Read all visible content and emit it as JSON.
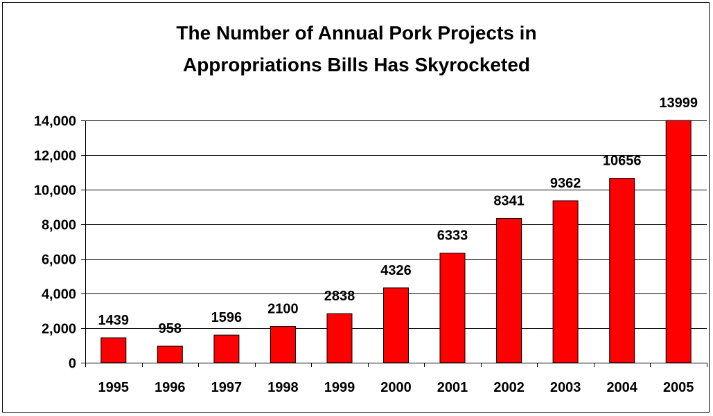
{
  "chart_data": {
    "type": "bar",
    "title": "The Number of Annual Pork Projects in Appropriations Bills Has Skyrocketed",
    "title_lines": [
      "The Number of Annual Pork Projects in",
      "Appropriations Bills Has Skyrocketed"
    ],
    "xlabel": "",
    "ylabel": "",
    "categories": [
      "1995",
      "1996",
      "1997",
      "1998",
      "1999",
      "2000",
      "2001",
      "2002",
      "2003",
      "2004",
      "2005"
    ],
    "values": [
      1439,
      958,
      1596,
      2100,
      2838,
      4326,
      6333,
      8341,
      9362,
      10656,
      13999
    ],
    "data_labels": [
      "1439",
      "958",
      "1596",
      "2100",
      "2838",
      "4326",
      "6333",
      "8341",
      "9362",
      "10656",
      "13999"
    ],
    "ylim": [
      0,
      14000
    ],
    "yticks": [
      0,
      2000,
      4000,
      6000,
      8000,
      10000,
      12000,
      14000
    ],
    "ytick_labels": [
      "0",
      "2,000",
      "4,000",
      "6,000",
      "8,000",
      "10,000",
      "12,000",
      "14,000"
    ],
    "grid": true,
    "legend": "none",
    "colors": {
      "bar_fill": "#ff0000",
      "bar_stroke": "#000000",
      "gridline": "#000000"
    }
  }
}
